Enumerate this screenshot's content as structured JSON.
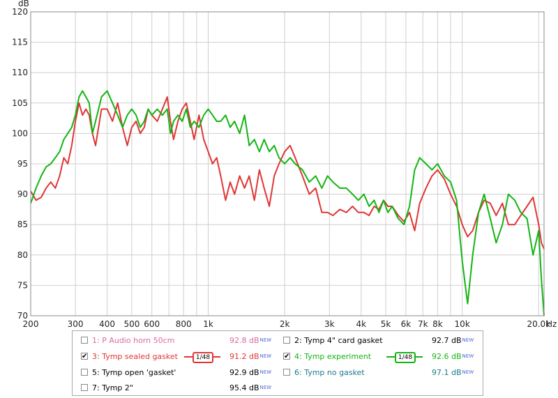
{
  "chart_data": {
    "type": "line",
    "x_scale": "log",
    "xlim": [
      200,
      21000
    ],
    "ylim": [
      70,
      120
    ],
    "ylabel": "dB",
    "xlabel": "Hz",
    "grid": true,
    "colors": {
      "background": "#ffffff",
      "grid": "#cfcfcf",
      "frame": "#8a8a8a"
    },
    "y_ticks": [
      70,
      75,
      80,
      85,
      90,
      95,
      100,
      105,
      110,
      115,
      120
    ],
    "x_ticks": [
      {
        "v": 200,
        "label": "200"
      },
      {
        "v": 300,
        "label": "300"
      },
      {
        "v": 400,
        "label": "400"
      },
      {
        "v": 500,
        "label": "500"
      },
      {
        "v": 600,
        "label": "600"
      },
      {
        "v": 800,
        "label": "800"
      },
      {
        "v": 1000,
        "label": "1k"
      },
      {
        "v": 2000,
        "label": "2k"
      },
      {
        "v": 3000,
        "label": "3k"
      },
      {
        "v": 4000,
        "label": "4k"
      },
      {
        "v": 5000,
        "label": "5k"
      },
      {
        "v": 6000,
        "label": "6k"
      },
      {
        "v": 7000,
        "label": "7k"
      },
      {
        "v": 8000,
        "label": "8k"
      },
      {
        "v": 10000,
        "label": "10k"
      },
      {
        "v": 20000,
        "label": "20.0k"
      }
    ],
    "x_grid": [
      200,
      300,
      400,
      500,
      600,
      700,
      800,
      900,
      1000,
      2000,
      3000,
      4000,
      5000,
      6000,
      7000,
      8000,
      9000,
      10000,
      20000
    ],
    "series": [
      {
        "name": "3: Tymp sealed gasket",
        "color": "#e03535",
        "points": [
          [
            200,
            90.5
          ],
          [
            210,
            89
          ],
          [
            220,
            89.5
          ],
          [
            230,
            91
          ],
          [
            240,
            92
          ],
          [
            250,
            91
          ],
          [
            260,
            93
          ],
          [
            270,
            96
          ],
          [
            280,
            95
          ],
          [
            290,
            98
          ],
          [
            300,
            102
          ],
          [
            310,
            105
          ],
          [
            320,
            103
          ],
          [
            330,
            104
          ],
          [
            340,
            103
          ],
          [
            350,
            100
          ],
          [
            360,
            98
          ],
          [
            370,
            101
          ],
          [
            380,
            104
          ],
          [
            400,
            104
          ],
          [
            420,
            102
          ],
          [
            440,
            105
          ],
          [
            460,
            101
          ],
          [
            480,
            98
          ],
          [
            500,
            101
          ],
          [
            520,
            102
          ],
          [
            540,
            100
          ],
          [
            560,
            101
          ],
          [
            580,
            104
          ],
          [
            600,
            103
          ],
          [
            630,
            102
          ],
          [
            660,
            104
          ],
          [
            690,
            106
          ],
          [
            710,
            102
          ],
          [
            730,
            99
          ],
          [
            760,
            102
          ],
          [
            790,
            104
          ],
          [
            820,
            105
          ],
          [
            850,
            102
          ],
          [
            880,
            99
          ],
          [
            920,
            103
          ],
          [
            960,
            99
          ],
          [
            1000,
            97
          ],
          [
            1040,
            95
          ],
          [
            1080,
            96
          ],
          [
            1120,
            93
          ],
          [
            1170,
            89
          ],
          [
            1220,
            92
          ],
          [
            1270,
            90
          ],
          [
            1330,
            93
          ],
          [
            1390,
            91
          ],
          [
            1450,
            93
          ],
          [
            1520,
            89
          ],
          [
            1590,
            94
          ],
          [
            1660,
            91
          ],
          [
            1740,
            88
          ],
          [
            1820,
            93
          ],
          [
            1900,
            95
          ],
          [
            2000,
            97
          ],
          [
            2100,
            98
          ],
          [
            2200,
            96
          ],
          [
            2350,
            93
          ],
          [
            2500,
            90
          ],
          [
            2650,
            91
          ],
          [
            2800,
            87
          ],
          [
            2950,
            87
          ],
          [
            3100,
            86.5
          ],
          [
            3300,
            87.5
          ],
          [
            3500,
            87
          ],
          [
            3700,
            88
          ],
          [
            3900,
            87
          ],
          [
            4100,
            87
          ],
          [
            4300,
            86.5
          ],
          [
            4500,
            88
          ],
          [
            4700,
            87.5
          ],
          [
            4900,
            89
          ],
          [
            5100,
            88
          ],
          [
            5300,
            88
          ],
          [
            5600,
            86.5
          ],
          [
            5900,
            85.5
          ],
          [
            6200,
            87
          ],
          [
            6500,
            84
          ],
          [
            6800,
            88.5
          ],
          [
            7200,
            91
          ],
          [
            7600,
            93
          ],
          [
            8000,
            94
          ],
          [
            8500,
            92.5
          ],
          [
            9000,
            90
          ],
          [
            9500,
            88
          ],
          [
            10000,
            85
          ],
          [
            10500,
            83
          ],
          [
            11000,
            84
          ],
          [
            11600,
            87
          ],
          [
            12200,
            89
          ],
          [
            12900,
            88.5
          ],
          [
            13600,
            86.5
          ],
          [
            14400,
            88.5
          ],
          [
            15200,
            85
          ],
          [
            16100,
            85
          ],
          [
            17000,
            86.5
          ],
          [
            18000,
            88
          ],
          [
            19000,
            89.5
          ],
          [
            20000,
            85
          ],
          [
            20500,
            82
          ],
          [
            21000,
            81
          ]
        ]
      },
      {
        "name": "4: Tymp experiment",
        "color": "#12b412",
        "points": [
          [
            200,
            88.5
          ],
          [
            210,
            91
          ],
          [
            220,
            93
          ],
          [
            230,
            94.5
          ],
          [
            240,
            95
          ],
          [
            250,
            96
          ],
          [
            260,
            97
          ],
          [
            270,
            99
          ],
          [
            280,
            100
          ],
          [
            290,
            101
          ],
          [
            300,
            103
          ],
          [
            310,
            106
          ],
          [
            320,
            107
          ],
          [
            330,
            106
          ],
          [
            340,
            105
          ],
          [
            350,
            100
          ],
          [
            360,
            102
          ],
          [
            370,
            104
          ],
          [
            380,
            106
          ],
          [
            400,
            107
          ],
          [
            420,
            105
          ],
          [
            440,
            103
          ],
          [
            460,
            101
          ],
          [
            480,
            103
          ],
          [
            500,
            104
          ],
          [
            520,
            103
          ],
          [
            540,
            101
          ],
          [
            560,
            102
          ],
          [
            580,
            104
          ],
          [
            600,
            103
          ],
          [
            630,
            104
          ],
          [
            660,
            103
          ],
          [
            690,
            104
          ],
          [
            710,
            100
          ],
          [
            730,
            102
          ],
          [
            760,
            103
          ],
          [
            790,
            102
          ],
          [
            820,
            104
          ],
          [
            850,
            101
          ],
          [
            880,
            102
          ],
          [
            920,
            101
          ],
          [
            960,
            103
          ],
          [
            1000,
            104
          ],
          [
            1040,
            103
          ],
          [
            1080,
            102
          ],
          [
            1120,
            102
          ],
          [
            1170,
            103
          ],
          [
            1220,
            101
          ],
          [
            1270,
            102
          ],
          [
            1330,
            100
          ],
          [
            1390,
            103
          ],
          [
            1450,
            98
          ],
          [
            1520,
            99
          ],
          [
            1590,
            97
          ],
          [
            1660,
            99
          ],
          [
            1740,
            97
          ],
          [
            1820,
            98
          ],
          [
            1900,
            96
          ],
          [
            2000,
            95
          ],
          [
            2100,
            96
          ],
          [
            2200,
            95
          ],
          [
            2350,
            94
          ],
          [
            2500,
            92
          ],
          [
            2650,
            93
          ],
          [
            2800,
            91
          ],
          [
            2950,
            93
          ],
          [
            3100,
            92
          ],
          [
            3300,
            91
          ],
          [
            3500,
            91
          ],
          [
            3700,
            90
          ],
          [
            3900,
            89
          ],
          [
            4100,
            90
          ],
          [
            4300,
            88
          ],
          [
            4500,
            89
          ],
          [
            4700,
            87
          ],
          [
            4900,
            89
          ],
          [
            5100,
            87
          ],
          [
            5300,
            88
          ],
          [
            5600,
            86
          ],
          [
            5900,
            85
          ],
          [
            6200,
            88
          ],
          [
            6500,
            94
          ],
          [
            6800,
            96
          ],
          [
            7200,
            95
          ],
          [
            7600,
            94
          ],
          [
            8000,
            95
          ],
          [
            8500,
            93
          ],
          [
            9000,
            92
          ],
          [
            9500,
            89
          ],
          [
            10000,
            79
          ],
          [
            10500,
            72
          ],
          [
            11000,
            80
          ],
          [
            11600,
            87
          ],
          [
            12200,
            90
          ],
          [
            12900,
            86
          ],
          [
            13600,
            82
          ],
          [
            14400,
            85
          ],
          [
            15200,
            90
          ],
          [
            16100,
            89
          ],
          [
            17000,
            87
          ],
          [
            18000,
            86
          ],
          [
            19000,
            80
          ],
          [
            20000,
            84
          ],
          [
            20500,
            76
          ],
          [
            21000,
            70
          ]
        ]
      }
    ]
  },
  "legend": {
    "items": [
      {
        "label": "1: P Audio horn 50cm",
        "value": "92.8 dB",
        "badge": "NEW",
        "checked": false,
        "color": "#d96b9e",
        "smoothing": ""
      },
      {
        "label": "2: Tymp 4\" card gasket",
        "value": "92.7 dB",
        "badge": "NEW",
        "checked": false,
        "color": "#000000",
        "smoothing": ""
      },
      {
        "label": "3: Tymp sealed gasket",
        "value": "91.2 dB",
        "badge": "NEW",
        "checked": true,
        "color": "#e03535",
        "smoothing": "1/48"
      },
      {
        "label": "4: Tymp experiment",
        "value": "92.6 dB",
        "badge": "NEW",
        "checked": true,
        "color": "#12b412",
        "smoothing": "1/48"
      },
      {
        "label": "5: Tymp open 'gasket'",
        "value": "92.9 dB",
        "badge": "NEW",
        "checked": false,
        "color": "#000000",
        "smoothing": ""
      },
      {
        "label": "6: Tymp no gasket",
        "value": "97.1 dB",
        "badge": "NEW",
        "checked": false,
        "color": "#1a7a8a",
        "smoothing": ""
      },
      {
        "label": "7: Tymp 2\"",
        "value": "95.4 dB",
        "badge": "NEW",
        "checked": false,
        "color": "#000000",
        "smoothing": ""
      }
    ]
  }
}
